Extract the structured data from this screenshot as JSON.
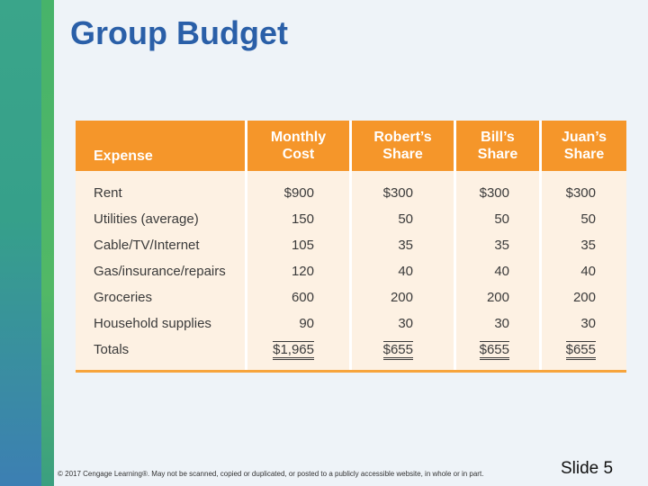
{
  "title": "Group Budget",
  "table": {
    "headers": [
      "Expense",
      "Monthly\nCost",
      "Robert’s\nShare",
      "Bill’s\nShare",
      "Juan’s\nShare"
    ],
    "rows": [
      {
        "label": "Rent",
        "values": [
          "$900",
          "$300",
          "$300",
          "$300"
        ]
      },
      {
        "label": "Utilities (average)",
        "values": [
          "150",
          "50",
          "50",
          "50"
        ]
      },
      {
        "label": "Cable/TV/Internet",
        "values": [
          "105",
          "35",
          "35",
          "35"
        ]
      },
      {
        "label": "Gas/insurance/repairs",
        "values": [
          "120",
          "40",
          "40",
          "40"
        ]
      },
      {
        "label": "Groceries",
        "values": [
          "600",
          "200",
          "200",
          "200"
        ]
      },
      {
        "label": "Household supplies",
        "values": [
          "90",
          "30",
          "30",
          "30"
        ]
      }
    ],
    "totals": {
      "label": "Totals",
      "values": [
        "$1,965",
        "$655",
        "$655",
        "$655"
      ]
    }
  },
  "footer": "© 2017 Cengage Learning®. May not be scanned, copied or duplicated, or posted to a publicly accessible website, in whole or in part.",
  "slide_number": "Slide 5",
  "colors": {
    "title": "#2a5fa8",
    "header": "#f5962a",
    "table_body": "#fdf1e3"
  }
}
